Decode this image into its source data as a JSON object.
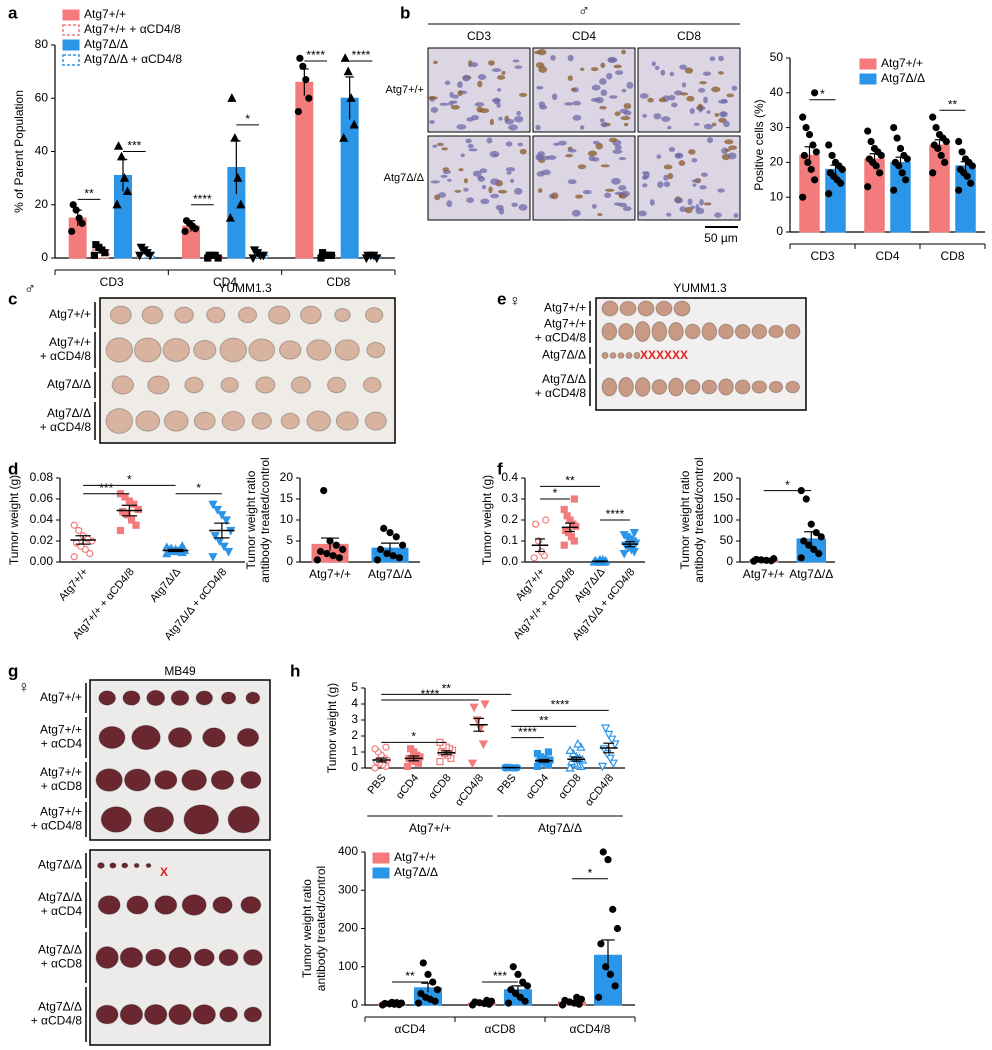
{
  "letters": [
    "a",
    "b",
    "c",
    "d",
    "e",
    "f",
    "g",
    "h"
  ],
  "micrograph": {
    "sex": "♂",
    "columns": [
      "CD3",
      "CD4",
      "CD8"
    ],
    "rows": [
      "Atg7+/+",
      "Atg7Δ/Δ"
    ],
    "scale": "50 µm"
  },
  "photos": [
    {
      "title": "YUMM1.3",
      "sex": "♂",
      "rows": [
        [
          "Atg7+/+"
        ],
        [
          "Atg7+/+",
          "+ αCD4/8"
        ],
        [
          "Atg7Δ/Δ"
        ],
        [
          "Atg7Δ/Δ",
          "+ αCD4/8"
        ]
      ]
    },
    {
      "title": "YUMM1.3",
      "sex": "♀",
      "rows": [
        [
          "Atg7+/+"
        ],
        [
          "Atg7+/+",
          "+ αCD4/8"
        ],
        [
          "Atg7Δ/Δ"
        ],
        [
          "Atg7Δ/Δ",
          "+ αCD4/8"
        ]
      ],
      "marker": "XXXXXX"
    },
    {
      "title": "MB49",
      "sex": "♀",
      "rows": [
        [
          "Atg7+/+"
        ],
        [
          "Atg7+/+",
          "+ αCD4"
        ],
        [
          "Atg7+/+",
          "+ αCD8"
        ],
        [
          "Atg7+/+",
          "+ αCD4/8"
        ]
      ]
    },
    {
      "rows": [
        [
          "Atg7Δ/Δ"
        ],
        [
          "Atg7Δ/Δ",
          "+ αCD4"
        ],
        [
          "Atg7Δ/Δ",
          "+ αCD8"
        ],
        [
          "Atg7Δ/Δ",
          "+ αCD4/8"
        ]
      ],
      "marker": "X"
    }
  ],
  "chart_data": [
    {
      "type": "bar",
      "y_label": "% of Parent Population",
      "categories": [
        "CD3",
        "CD4",
        "CD8"
      ],
      "ylim": [
        0,
        80
      ],
      "yticks": [
        0,
        20,
        40,
        60,
        80
      ],
      "legend": "top-left",
      "point_color": "#000000",
      "series": [
        {
          "name": "Atg7+/+",
          "color": "#f37b7b",
          "marker": "circle",
          "values": [
            15,
            12,
            66
          ],
          "errors": [
            3,
            2,
            5
          ],
          "points": [
            [
              10,
              13,
              15,
              18,
              20
            ],
            [
              10,
              11,
              12,
              13,
              14
            ],
            [
              55,
              60,
              67,
              72,
              75
            ]
          ]
        },
        {
          "name": "Atg7+/+ + αCD4/8",
          "color": "#f37b7b",
          "hatched": true,
          "marker": "square",
          "values": [
            3,
            0.5,
            1
          ],
          "errors": [
            1,
            0.3,
            0.5
          ],
          "points": [
            [
              1,
              2,
              3,
              4,
              5
            ],
            [
              0,
              0,
              1,
              1,
              1
            ],
            [
              0,
              1,
              1,
              1,
              2
            ]
          ]
        },
        {
          "name": "Atg7Δ/Δ",
          "color": "#2b95e8",
          "marker": "triangle",
          "values": [
            31,
            34,
            60
          ],
          "errors": [
            6,
            10,
            8
          ],
          "points": [
            [
              20,
              25,
              30,
              38,
              42
            ],
            [
              15,
              20,
              30,
              45,
              60
            ],
            [
              45,
              50,
              60,
              70,
              75
            ]
          ]
        },
        {
          "name": "Atg7Δ/Δ + αCD4/8",
          "color": "#2b95e8",
          "hatched": true,
          "marker": "triangle-down",
          "values": [
            2,
            1,
            0.5
          ],
          "errors": [
            1,
            1,
            0.3
          ],
          "points": [
            [
              1,
              1,
              2,
              3,
              4
            ],
            [
              0,
              1,
              1,
              2,
              3
            ],
            [
              0,
              0,
              1,
              1,
              1
            ]
          ]
        }
      ],
      "annotations": [
        "**",
        "***",
        "****",
        "*",
        "****",
        "****"
      ]
    },
    {
      "type": "bar",
      "y_label": "Positive cells (%)",
      "categories": [
        "CD3",
        "CD4",
        "CD8"
      ],
      "ylim": [
        0,
        50
      ],
      "yticks": [
        0,
        10,
        20,
        30,
        40,
        50
      ],
      "legend": "top-right",
      "point_color": "#000000",
      "series": [
        {
          "name": "Atg7+/+",
          "color": "#f37b7b",
          "marker": "circle",
          "values": [
            22,
            21,
            25
          ],
          "errors": [
            2.5,
            1.5,
            1.5
          ],
          "points": [
            [
              10,
              15,
              18,
              20,
              22,
              23,
              25,
              28,
              30,
              33,
              40
            ],
            [
              13,
              17,
              19,
              20,
              21,
              22,
              23,
              24,
              26,
              29
            ],
            [
              17,
              20,
              22,
              24,
              25,
              26,
              27,
              28,
              30,
              33
            ]
          ]
        },
        {
          "name": "Atg7Δ/Δ",
          "color": "#2b95e8",
          "marker": "circle",
          "values": [
            18,
            20,
            19
          ],
          "errors": [
            1.2,
            1.5,
            1.2
          ],
          "points": [
            [
              11,
              14,
              15,
              16,
              17,
              18,
              19,
              20,
              22,
              25
            ],
            [
              12,
              15,
              17,
              19,
              20,
              21,
              22,
              24,
              27,
              30
            ],
            [
              12,
              14,
              16,
              17,
              18,
              19,
              20,
              21,
              23,
              26
            ]
          ]
        }
      ],
      "annotations": [
        "*",
        "**"
      ]
    },
    {
      "type": "dot",
      "y_label": "Tumor weight (g)",
      "categories": [
        "Atg7+/+",
        "Atg7+/+ + αCD4/8",
        "Atg7Δ/Δ",
        "Atg7Δ/Δ + αCD4/8"
      ],
      "ylim": [
        0,
        0.08
      ],
      "yticks": [
        {
          "value": 0,
          "label": "0.00"
        },
        0.02,
        0.04,
        0.06,
        0.08
      ],
      "colors": [
        "#f37b7b",
        "#f37b7b",
        "#2b95e8",
        "#2b95e8"
      ],
      "markers": [
        "circle-open",
        "square",
        "triangle",
        "triangle-down"
      ],
      "values": [
        0.021,
        0.049,
        0.011,
        0.03
      ],
      "errors": [
        0.004,
        0.005,
        0.001,
        0.007
      ],
      "points": [
        [
          0.005,
          0.008,
          0.012,
          0.015,
          0.018,
          0.02,
          0.022,
          0.025,
          0.03,
          0.035
        ],
        [
          0.03,
          0.035,
          0.04,
          0.045,
          0.048,
          0.05,
          0.055,
          0.058,
          0.062,
          0.065
        ],
        [
          0.008,
          0.009,
          0.01,
          0.01,
          0.011,
          0.011,
          0.012,
          0.012,
          0.013,
          0.014,
          0.015
        ],
        [
          0.005,
          0.01,
          0.015,
          0.02,
          0.025,
          0.03,
          0.04,
          0.045,
          0.05,
          0.055
        ]
      ],
      "annotations": [
        "***",
        "*",
        "*"
      ]
    },
    {
      "type": "bar",
      "y_label": [
        "Tumor weight ratio",
        "antibody treated/control"
      ],
      "categories": [
        "Atg7+/+",
        "Atg7Δ/Δ"
      ],
      "ylim": [
        0,
        20
      ],
      "yticks": [
        0,
        5,
        10,
        15,
        20
      ],
      "colors": [
        "#f37b7b",
        "#2b95e8"
      ],
      "point_color": "#000000",
      "values": [
        4.2,
        3.3
      ],
      "errors": [
        1.5,
        1.2
      ],
      "points": [
        [
          0.5,
          1,
          1.5,
          2,
          2.5,
          3,
          4,
          5,
          17
        ],
        [
          0.5,
          1,
          1.5,
          2,
          3,
          4,
          6,
          7,
          8
        ]
      ]
    },
    {
      "type": "dot",
      "y_label": "Tumor weight (g)",
      "categories": [
        "Atg7+/+",
        "Atg7+/+ + αCD4/8",
        "Atg7Δ/Δ",
        "Atg7Δ/Δ + αCD4/8"
      ],
      "ylim": [
        0,
        0.4
      ],
      "yticks": [
        {
          "value": 0,
          "label": "0.0"
        },
        0.1,
        0.2,
        0.3,
        0.4
      ],
      "colors": [
        "#f37b7b",
        "#f37b7b",
        "#2b95e8",
        "#2b95e8"
      ],
      "markers": [
        "circle-open",
        "square",
        "triangle",
        "triangle-down"
      ],
      "values": [
        0.08,
        0.165,
        0.003,
        0.085
      ],
      "errors": [
        0.03,
        0.02,
        0.002,
        0.012
      ],
      "points": [
        [
          0.02,
          0.03,
          0.05,
          0.1,
          0.18,
          0.2
        ],
        [
          0.08,
          0.1,
          0.12,
          0.14,
          0.15,
          0.17,
          0.18,
          0.2,
          0.22,
          0.25,
          0.3
        ],
        [
          0,
          0,
          0,
          0,
          0.005,
          0.005,
          0.01,
          0.01
        ],
        [
          0.04,
          0.05,
          0.06,
          0.07,
          0.08,
          0.09,
          0.1,
          0.11,
          0.12,
          0.13,
          0.14
        ]
      ],
      "annotations": [
        "**",
        "*",
        "****"
      ]
    },
    {
      "type": "bar",
      "y_label": [
        "Tumor weight ratio",
        "antibody treated/control"
      ],
      "categories": [
        "Atg7+/+",
        "Atg7Δ/Δ"
      ],
      "ylim": [
        0,
        200
      ],
      "yticks": [
        0,
        50,
        100,
        150,
        200
      ],
      "colors": [
        "#f37b7b",
        "#2b95e8"
      ],
      "point_color": "#000000",
      "values": [
        5,
        55
      ],
      "errors": [
        2,
        17
      ],
      "points": [
        [
          2,
          3,
          4,
          5,
          6,
          8
        ],
        [
          10,
          20,
          30,
          40,
          50,
          60,
          70,
          90,
          150,
          170
        ]
      ],
      "annotations": [
        "*"
      ]
    },
    {
      "type": "dot",
      "y_label": "Tumor weight (g)",
      "categories": [
        "PBS",
        "αCD4",
        "αCD8",
        "αCD4/8",
        "PBS",
        "αCD4",
        "αCD8",
        "αCD4/8"
      ],
      "groups": [
        "Atg7+/+",
        "Atg7Δ/Δ"
      ],
      "ylim": [
        0,
        5
      ],
      "yticks": [
        0,
        1,
        2,
        3,
        4,
        5
      ],
      "colors": [
        "#f37b7b",
        "#f37b7b",
        "#f37b7b",
        "#f37b7b",
        "#2b95e8",
        "#2b95e8",
        "#2b95e8",
        "#2b95e8"
      ],
      "markers": [
        "circle-open",
        "square",
        "square-open",
        "triangle-down",
        "circle",
        "square",
        "triangle-open",
        "triangle-down-open"
      ],
      "values": [
        0.5,
        0.6,
        0.95,
        2.7,
        0.02,
        0.45,
        0.55,
        1.25
      ],
      "errors": [
        0.12,
        0.15,
        0.12,
        0.4,
        0.01,
        0.08,
        0.12,
        0.3
      ],
      "points": [
        [
          0,
          0.1,
          0.2,
          0.3,
          0.4,
          0.5,
          0.6,
          0.8,
          1.0,
          1.2,
          1.3
        ],
        [
          0.1,
          0.3,
          0.4,
          0.5,
          0.6,
          0.7,
          0.8,
          1.0,
          1.2
        ],
        [
          0.4,
          0.6,
          0.8,
          0.9,
          1.0,
          1.1,
          1.2,
          1.3,
          1.4,
          1.6
        ],
        [
          0.3,
          1.5,
          2.5,
          3.0,
          3.8,
          4.0
        ],
        [
          0,
          0,
          0,
          0.01,
          0.01,
          0.02,
          0.02,
          0.03,
          0.05,
          0.05
        ],
        [
          0.1,
          0.2,
          0.3,
          0.4,
          0.4,
          0.5,
          0.5,
          0.6,
          0.7,
          0.9,
          1.0
        ],
        [
          0,
          0.1,
          0.2,
          0.3,
          0.4,
          0.5,
          0.6,
          0.7,
          0.9,
          1.1,
          1.3,
          1.5
        ],
        [
          0.1,
          0.3,
          0.6,
          0.9,
          1.2,
          1.5,
          1.8,
          2.1,
          2.5
        ]
      ],
      "annotations": [
        "**",
        "****",
        "*",
        "****",
        "**",
        "****"
      ]
    },
    {
      "type": "bar",
      "y_label": [
        "Tumor weight ratio",
        "antibody treated/control"
      ],
      "categories": [
        "αCD4",
        "αCD8",
        "αCD4/8"
      ],
      "ylim": [
        0,
        400
      ],
      "yticks": [
        0,
        100,
        200,
        300,
        400
      ],
      "legend": "top-left",
      "point_color": "#000000",
      "series": [
        {
          "name": "Atg7+/+",
          "color": "#f37b7b",
          "marker": "circle",
          "values": [
            3,
            5,
            8
          ],
          "errors": [
            1,
            1,
            2
          ],
          "points": [
            [
              0,
              1,
              2,
              3,
              4,
              5,
              6,
              7
            ],
            [
              0,
              2,
              4,
              6,
              8,
              10,
              12
            ],
            [
              0,
              2,
              5,
              8,
              12,
              15,
              20
            ]
          ]
        },
        {
          "name": "Atg7Δ/Δ",
          "color": "#2b95e8",
          "marker": "circle",
          "values": [
            45,
            40,
            130
          ],
          "errors": [
            12,
            10,
            40
          ],
          "points": [
            [
              5,
              10,
              15,
              20,
              30,
              40,
              60,
              80,
              110
            ],
            [
              5,
              10,
              20,
              30,
              40,
              50,
              60,
              80,
              100
            ],
            [
              20,
              50,
              80,
              100,
              160,
              200,
              250,
              380,
              400
            ]
          ]
        }
      ],
      "annotations": [
        "**",
        "***",
        "*"
      ]
    }
  ]
}
